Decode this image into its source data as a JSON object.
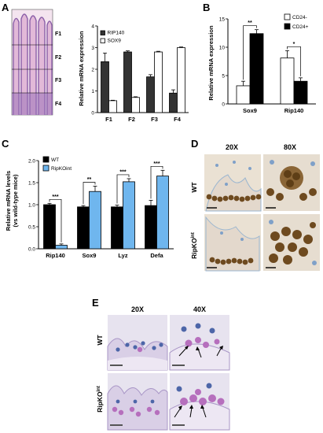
{
  "panels": {
    "A": {
      "letter": "A",
      "segments": [
        "F1",
        "F2",
        "F3",
        "F4"
      ],
      "chart_data": {
        "type": "bar",
        "ylabel": "Relative mRNA expression",
        "ylim": [
          0,
          4
        ],
        "yticks": [
          "0",
          "1",
          "2",
          "3",
          "4"
        ],
        "categories": [
          "F1",
          "F2",
          "F3",
          "F4"
        ],
        "series": [
          {
            "name": "RIP140",
            "color": "#333333",
            "values": [
              2.35,
              2.8,
              1.65,
              0.9
            ],
            "errors": [
              0.4,
              0.05,
              0.1,
              0.15
            ]
          },
          {
            "name": "SOX9",
            "color": "#ffffff",
            "values": [
              0.55,
              0.7,
              2.8,
              3.0
            ],
            "errors": [
              0.02,
              0.03,
              0.03,
              0.03
            ]
          }
        ],
        "legend": "top-left"
      }
    },
    "B": {
      "letter": "B",
      "chart_data": {
        "type": "bar",
        "ylabel": "Relative mRNA expression",
        "ylim": [
          0,
          15
        ],
        "yticks": [
          "0",
          "5",
          "10",
          "15"
        ],
        "categories": [
          "Sox9",
          "Rip140"
        ],
        "series": [
          {
            "name": "CD24-",
            "color": "#ffffff",
            "values": [
              3.2,
              8.1
            ],
            "errors": [
              0.8,
              1.3
            ]
          },
          {
            "name": "CD24+",
            "color": "#000000",
            "values": [
              12.4,
              4.0
            ],
            "errors": [
              0.7,
              0.6
            ]
          }
        ],
        "significance": [
          "**",
          "*"
        ],
        "legend": "top-right"
      }
    },
    "C": {
      "letter": "C",
      "chart_data": {
        "type": "bar",
        "ylabel": [
          "Relative mRNA levels",
          "(vs wild-type mice)"
        ],
        "ylim": [
          0,
          2
        ],
        "yticks": [
          "0.0",
          "0.5",
          "1.0",
          "1.5",
          "2.0"
        ],
        "categories": [
          "Rip140",
          "Sox9",
          "Lyz",
          "Defa"
        ],
        "series": [
          {
            "name": "WT",
            "color": "#000000",
            "values": [
              1.0,
              0.95,
              0.95,
              0.98
            ],
            "errors": [
              0.03,
              0.03,
              0.04,
              0.12
            ]
          },
          {
            "name": "RipKOint",
            "color": "#6fb6ee",
            "values": [
              0.08,
              1.3,
              1.52,
              1.65
            ],
            "errors": [
              0.03,
              0.12,
              0.07,
              0.13
            ]
          }
        ],
        "significance": [
          "***",
          "**",
          "***",
          "***"
        ],
        "legend": "top-left"
      }
    },
    "D": {
      "letter": "D",
      "columns": [
        "20X",
        "80X"
      ],
      "rows": [
        {
          "main": "WT",
          "sup": ""
        },
        {
          "main": "RipKO",
          "sup": "int"
        }
      ]
    },
    "E": {
      "letter": "E",
      "columns": [
        "20X",
        "40X"
      ],
      "rows": [
        {
          "main": "WT",
          "sup": ""
        },
        {
          "main": "RipKO",
          "sup": "int"
        }
      ]
    }
  },
  "colors": {
    "he_pink": "#e9c8e0",
    "he_purple": "#8a5fa8",
    "ihc_bg": "#eae1d3",
    "ihc_brown": "#6e4a1f",
    "pas_bg": "#e7e3ef",
    "pas_magenta": "#b66fbd",
    "nuclei_blue": "#4d66a8"
  }
}
